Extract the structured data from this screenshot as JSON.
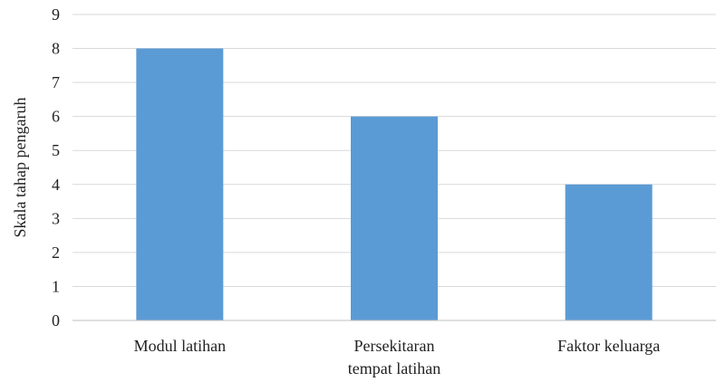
{
  "chart_data": {
    "type": "bar",
    "categories": [
      [
        "Modul latihan"
      ],
      [
        "Persekitaran",
        "tempat latihan"
      ],
      [
        "Faktor keluarga"
      ]
    ],
    "values": [
      8,
      6,
      4
    ],
    "title": "",
    "xlabel": "",
    "ylabel": "Skala tahap pengaruh",
    "ylim": [
      0,
      9
    ],
    "yticks": [
      "0",
      "1",
      "2",
      "3",
      "4",
      "5",
      "6",
      "7",
      "8",
      "9"
    ],
    "grid": true,
    "legend": "none",
    "bar_color": "#5b9bd5"
  }
}
